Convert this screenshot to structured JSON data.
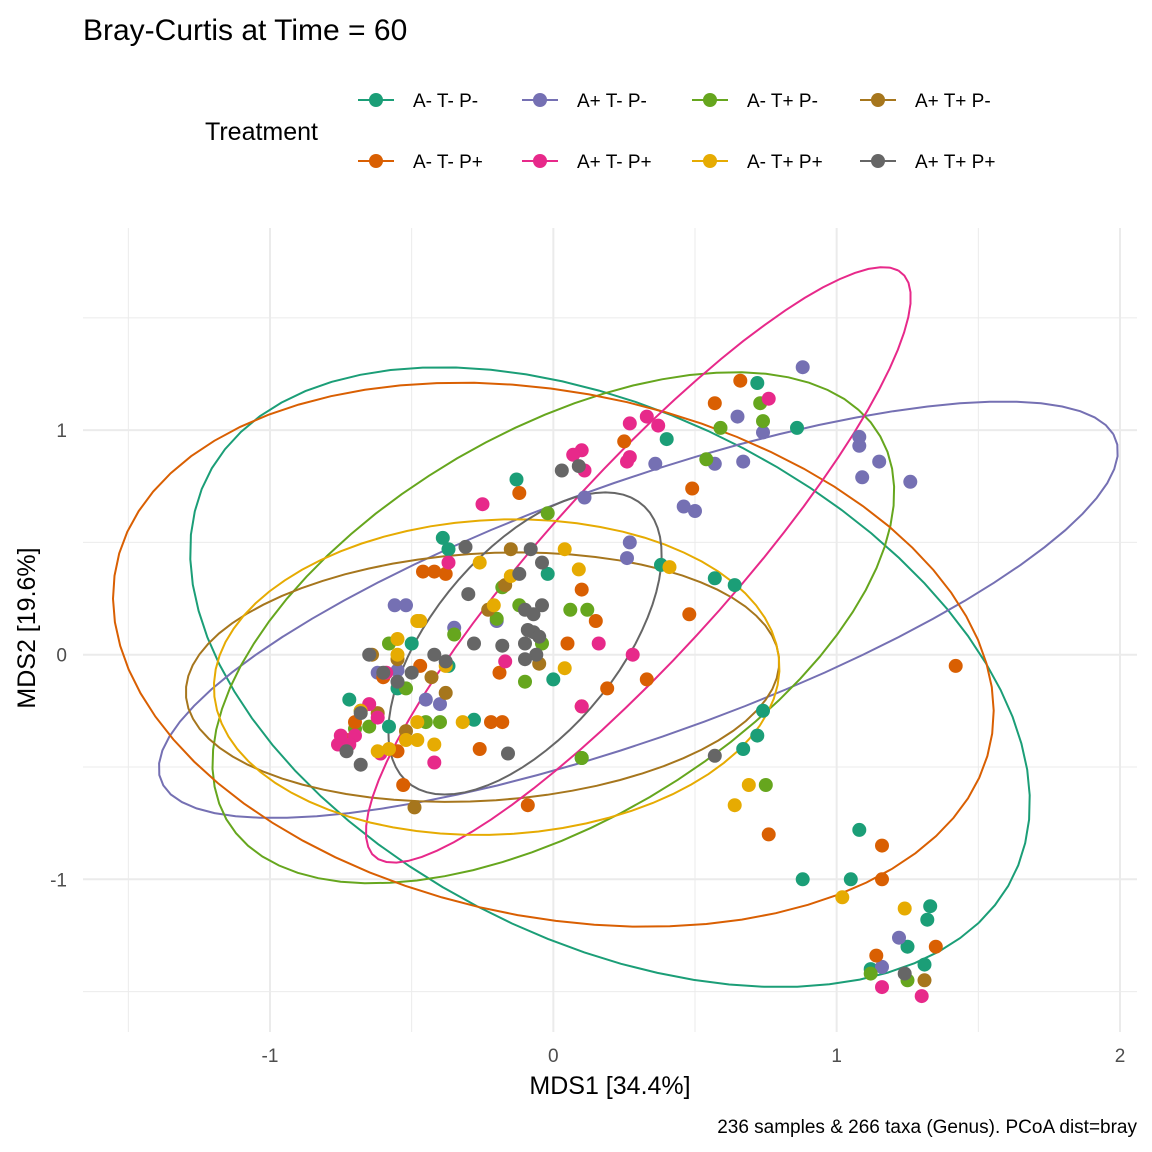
{
  "chart_data": {
    "type": "scatter",
    "title": "Bray-Curtis at Time = 60",
    "xlabel": "MDS1 [34.4%]",
    "ylabel": "MDS2 [19.6%]",
    "caption": "236 samples & 266 taxa (Genus). PCoA dist=bray",
    "legend_title": "Treatment",
    "legend_position": "top",
    "grid": true,
    "x_ticks": [
      -1,
      0,
      1,
      2
    ],
    "y_ticks": [
      -1,
      0,
      1
    ],
    "x_tick_labels": [
      "-1",
      "0",
      "1",
      "2"
    ],
    "y_tick_labels": [
      "-1",
      "0",
      "1"
    ],
    "xlim": [
      -1.66,
      2.06
    ],
    "ylim": [
      -1.68,
      1.9
    ],
    "confidence_ellipses": true,
    "series": [
      {
        "name": "A- T- P-",
        "color": "#1B9E77",
        "ellipse": {
          "cx": 0.2,
          "cy": -0.1,
          "rx": 1.7,
          "ry": 1.1,
          "angle": -40
        },
        "points": [
          [
            0.72,
            1.21
          ],
          [
            0.4,
            0.96
          ],
          [
            0.86,
            1.01
          ],
          [
            -0.13,
            0.78
          ],
          [
            -0.39,
            0.52
          ],
          [
            -0.37,
            0.47
          ],
          [
            -0.02,
            0.36
          ],
          [
            0.38,
            0.4
          ],
          [
            0.57,
            0.34
          ],
          [
            0.64,
            0.31
          ],
          [
            -0.5,
            0.05
          ],
          [
            -0.37,
            -0.05
          ],
          [
            0.0,
            -0.11
          ],
          [
            -0.28,
            -0.29
          ],
          [
            -0.72,
            -0.2
          ],
          [
            -0.68,
            -0.25
          ],
          [
            -0.55,
            -0.15
          ],
          [
            0.74,
            -0.25
          ],
          [
            0.72,
            -0.36
          ],
          [
            0.67,
            -0.42
          ],
          [
            1.08,
            -0.78
          ],
          [
            0.88,
            -1.0
          ],
          [
            1.05,
            -1.0
          ],
          [
            1.33,
            -1.12
          ],
          [
            1.32,
            -1.18
          ],
          [
            1.25,
            -1.3
          ],
          [
            1.31,
            -1.38
          ],
          [
            1.12,
            -1.4
          ],
          [
            0.1,
            -0.46
          ],
          [
            -0.58,
            -0.32
          ]
        ]
      },
      {
        "name": "A+ T- P-",
        "color": "#7570B3",
        "ellipse": {
          "cx": 0.3,
          "cy": 0.2,
          "rx": 1.85,
          "ry": 0.55,
          "angle": 25
        },
        "points": [
          [
            0.88,
            1.28
          ],
          [
            1.08,
            0.97
          ],
          [
            1.08,
            0.93
          ],
          [
            1.15,
            0.86
          ],
          [
            1.26,
            0.77
          ],
          [
            1.09,
            0.79
          ],
          [
            0.74,
            0.99
          ],
          [
            0.65,
            1.06
          ],
          [
            0.67,
            0.86
          ],
          [
            0.57,
            0.85
          ],
          [
            0.46,
            0.66
          ],
          [
            0.5,
            0.64
          ],
          [
            0.36,
            0.85
          ],
          [
            0.27,
            0.5
          ],
          [
            0.26,
            0.43
          ],
          [
            0.11,
            0.7
          ],
          [
            -0.56,
            0.22
          ],
          [
            -0.52,
            0.22
          ],
          [
            -0.35,
            0.12
          ],
          [
            -0.55,
            -0.07
          ],
          [
            -0.45,
            -0.2
          ],
          [
            -0.4,
            -0.22
          ],
          [
            1.22,
            -1.26
          ],
          [
            1.16,
            -1.39
          ],
          [
            -0.2,
            0.15
          ],
          [
            -0.62,
            -0.08
          ]
        ]
      },
      {
        "name": "A- T+ P-",
        "color": "#66A61E",
        "ellipse": {
          "cx": 0.0,
          "cy": 0.12,
          "rx": 1.45,
          "ry": 0.8,
          "angle": 42
        },
        "points": [
          [
            0.73,
            1.12
          ],
          [
            0.74,
            1.04
          ],
          [
            0.59,
            1.01
          ],
          [
            0.54,
            0.87
          ],
          [
            -0.02,
            0.63
          ],
          [
            -0.18,
            0.3
          ],
          [
            -0.12,
            0.22
          ],
          [
            0.12,
            0.2
          ],
          [
            0.06,
            0.2
          ],
          [
            -0.2,
            0.16
          ],
          [
            -0.35,
            0.09
          ],
          [
            -0.58,
            0.05
          ],
          [
            -0.1,
            -0.12
          ],
          [
            -0.4,
            -0.3
          ],
          [
            -0.45,
            -0.3
          ],
          [
            -0.52,
            -0.15
          ],
          [
            0.1,
            -0.46
          ],
          [
            0.75,
            -0.58
          ],
          [
            1.12,
            -1.42
          ],
          [
            1.25,
            -1.45
          ],
          [
            -0.7,
            -0.33
          ],
          [
            -0.65,
            -0.32
          ],
          [
            -0.04,
            0.05
          ]
        ]
      },
      {
        "name": "A+ T+ P-",
        "color": "#A6761D",
        "ellipse": {
          "cx": -0.25,
          "cy": -0.1,
          "rx": 1.05,
          "ry": 0.55,
          "angle": 5
        },
        "points": [
          [
            1.31,
            -1.45
          ],
          [
            -0.49,
            -0.68
          ],
          [
            -0.05,
            -0.04
          ],
          [
            -0.64,
            0.0
          ],
          [
            -0.55,
            -0.02
          ],
          [
            -0.43,
            -0.1
          ],
          [
            -0.38,
            -0.17
          ],
          [
            -0.62,
            -0.26
          ],
          [
            -0.52,
            -0.34
          ],
          [
            -0.15,
            0.47
          ],
          [
            -0.17,
            0.31
          ],
          [
            -0.23,
            0.2
          ]
        ]
      },
      {
        "name": "A- T- P+",
        "color": "#D95F02",
        "ellipse": {
          "cx": 0.0,
          "cy": 0.0,
          "rx": 1.6,
          "ry": 1.15,
          "angle": -20
        },
        "points": [
          [
            0.66,
            1.22
          ],
          [
            0.57,
            1.12
          ],
          [
            0.49,
            0.74
          ],
          [
            0.25,
            0.95
          ],
          [
            -0.12,
            0.72
          ],
          [
            -0.46,
            0.37
          ],
          [
            -0.38,
            0.36
          ],
          [
            -0.42,
            0.37
          ],
          [
            0.1,
            0.29
          ],
          [
            0.15,
            0.15
          ],
          [
            0.05,
            0.05
          ],
          [
            -0.19,
            -0.08
          ],
          [
            0.33,
            -0.11
          ],
          [
            0.48,
            0.18
          ],
          [
            0.19,
            -0.15
          ],
          [
            -0.18,
            -0.3
          ],
          [
            -0.22,
            -0.3
          ],
          [
            -0.26,
            -0.42
          ],
          [
            -0.53,
            -0.58
          ],
          [
            -0.09,
            -0.67
          ],
          [
            0.76,
            -0.8
          ],
          [
            1.16,
            -0.85
          ],
          [
            1.16,
            -1.0
          ],
          [
            1.35,
            -1.3
          ],
          [
            1.14,
            -1.34
          ],
          [
            1.42,
            -0.05
          ],
          [
            0.1,
            -0.23
          ],
          [
            -0.55,
            -0.43
          ],
          [
            -0.47,
            -0.05
          ],
          [
            -0.73,
            -0.38
          ],
          [
            -0.7,
            -0.3
          ],
          [
            -0.6,
            -0.1
          ]
        ]
      },
      {
        "name": "A+ T- P+",
        "color": "#E7298A",
        "ellipse": {
          "cx": 0.3,
          "cy": 0.4,
          "rx": 1.6,
          "ry": 0.35,
          "angle": 55
        },
        "points": [
          [
            0.76,
            1.14
          ],
          [
            0.33,
            1.06
          ],
          [
            0.27,
            1.03
          ],
          [
            0.37,
            1.02
          ],
          [
            0.27,
            0.88
          ],
          [
            0.1,
            0.91
          ],
          [
            0.07,
            0.89
          ],
          [
            0.11,
            0.82
          ],
          [
            0.26,
            0.86
          ],
          [
            0.16,
            0.05
          ],
          [
            0.28,
            -0.0
          ],
          [
            -0.25,
            0.67
          ],
          [
            -0.37,
            0.41
          ],
          [
            -0.17,
            -0.03
          ],
          [
            0.1,
            -0.23
          ],
          [
            -0.42,
            -0.48
          ],
          [
            -0.62,
            -0.28
          ],
          [
            -0.7,
            -0.36
          ],
          [
            -0.76,
            -0.4
          ],
          [
            -0.75,
            -0.36
          ],
          [
            -0.65,
            -0.22
          ],
          [
            -0.59,
            -0.08
          ],
          [
            1.16,
            -1.48
          ],
          [
            1.3,
            -1.52
          ],
          [
            -0.72,
            -0.4
          ],
          [
            -0.61,
            -0.44
          ]
        ]
      },
      {
        "name": "A- T+ P+",
        "color": "#E6AB02",
        "ellipse": {
          "cx": -0.2,
          "cy": -0.1,
          "rx": 1.0,
          "ry": 0.7,
          "angle": 5
        },
        "points": [
          [
            0.04,
            0.47
          ],
          [
            0.09,
            0.38
          ],
          [
            0.41,
            0.39
          ],
          [
            -0.26,
            0.41
          ],
          [
            -0.21,
            0.22
          ],
          [
            -0.47,
            0.15
          ],
          [
            -0.48,
            0.15
          ],
          [
            -0.55,
            0.07
          ],
          [
            -0.55,
            0.0
          ],
          [
            -0.68,
            -0.25
          ],
          [
            -0.42,
            -0.4
          ],
          [
            -0.48,
            -0.38
          ],
          [
            -0.32,
            -0.3
          ],
          [
            -0.62,
            -0.43
          ],
          [
            -0.38,
            -0.05
          ],
          [
            -0.48,
            -0.3
          ],
          [
            0.69,
            -0.58
          ],
          [
            0.64,
            -0.67
          ],
          [
            1.02,
            -1.08
          ],
          [
            1.24,
            -1.13
          ],
          [
            0.04,
            -0.06
          ],
          [
            -0.58,
            -0.42
          ],
          [
            -0.15,
            0.35
          ],
          [
            -0.52,
            -0.38
          ]
        ]
      },
      {
        "name": "A+ T+ P+",
        "color": "#666666",
        "ellipse": {
          "cx": -0.1,
          "cy": 0.05,
          "rx": 0.75,
          "ry": 0.35,
          "angle": 60
        },
        "points": [
          [
            0.03,
            0.82
          ],
          [
            0.09,
            0.84
          ],
          [
            -0.31,
            0.48
          ],
          [
            -0.08,
            0.47
          ],
          [
            -0.04,
            0.41
          ],
          [
            -0.12,
            0.36
          ],
          [
            -0.04,
            0.22
          ],
          [
            -0.07,
            0.18
          ],
          [
            -0.3,
            0.27
          ],
          [
            -0.1,
            0.2
          ],
          [
            -0.07,
            0.1
          ],
          [
            -0.09,
            0.11
          ],
          [
            -0.1,
            0.05
          ],
          [
            -0.06,
            0.0
          ],
          [
            -0.1,
            -0.02
          ],
          [
            -0.28,
            0.05
          ],
          [
            -0.42,
            0.0
          ],
          [
            -0.38,
            -0.03
          ],
          [
            -0.6,
            -0.08
          ],
          [
            -0.68,
            -0.26
          ],
          [
            -0.73,
            -0.43
          ],
          [
            -0.68,
            -0.49
          ],
          [
            -0.16,
            -0.44
          ],
          [
            0.57,
            -0.45
          ],
          [
            1.24,
            -1.42
          ],
          [
            -0.65,
            0.0
          ],
          [
            -0.5,
            -0.08
          ],
          [
            -0.55,
            -0.12
          ],
          [
            -0.18,
            0.04
          ],
          [
            -0.05,
            0.08
          ]
        ]
      }
    ]
  }
}
